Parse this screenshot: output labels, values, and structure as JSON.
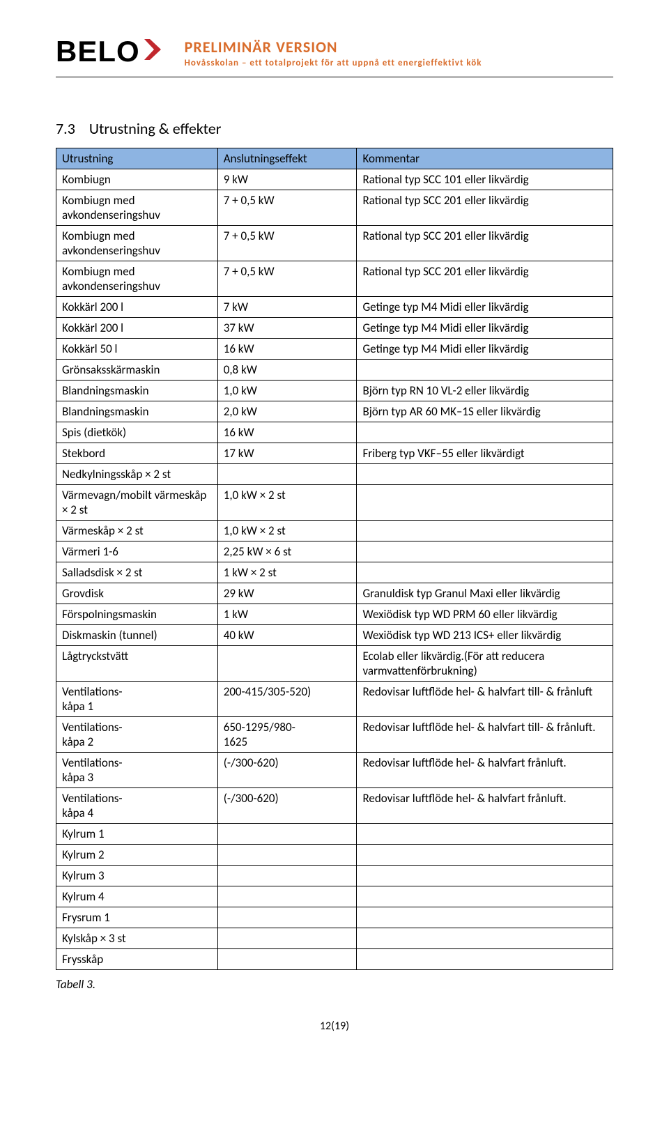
{
  "logo": {
    "text": "BELO"
  },
  "header": {
    "line1": "PRELIMINÄR VERSION",
    "line2": "Hovåsskolan – ett totalprojekt för att uppnå ett energieffektivt kök"
  },
  "section": {
    "number": "7.3",
    "title": "Utrustning & effekter"
  },
  "table": {
    "headers": [
      "Utrustning",
      "Anslutningseffekt",
      "Kommentar"
    ],
    "headerBg": "#8db4e2",
    "rows": [
      [
        "Kombiugn",
        "9 kW",
        "Rational typ SCC 101 eller likvärdig"
      ],
      [
        "Kombiugn med avkondenseringshuv",
        "7 + 0,5 kW",
        "Rational typ SCC 201 eller likvärdig"
      ],
      [
        "Kombiugn med avkondenseringshuv",
        "7 + 0,5 kW",
        "Rational typ SCC 201 eller likvärdig"
      ],
      [
        "Kombiugn med avkondenseringshuv",
        "7 + 0,5 kW",
        "Rational typ SCC 201 eller likvärdig"
      ],
      [
        "Kokkärl 200 l",
        "7 kW",
        "Getinge typ M4 Midi eller likvärdig"
      ],
      [
        "Kokkärl 200 l",
        "37 kW",
        "Getinge typ M4 Midi eller likvärdig"
      ],
      [
        "Kokkärl 50 l",
        "16 kW",
        "Getinge typ M4 Midi eller likvärdig"
      ],
      [
        "Grönsaksskärmaskin",
        "0,8 kW",
        ""
      ],
      [
        "Blandningsmaskin",
        "1,0 kW",
        "Björn typ RN 10 VL-2 eller likvärdig"
      ],
      [
        "Blandningsmaskin",
        "2,0 kW",
        "Björn typ AR 60 MK–1S eller likvärdig"
      ],
      [
        "Spis (dietkök)",
        "16 kW",
        ""
      ],
      [
        "Stekbord",
        "17 kW",
        "Friberg typ VKF–55 eller likvärdigt"
      ],
      [
        "Nedkylningsskåp × 2 st",
        "",
        ""
      ],
      [
        "Värmevagn/mobilt värmeskåp × 2 st",
        "1,0 kW × 2 st",
        ""
      ],
      [
        "Värmeskåp × 2 st",
        "1,0 kW × 2 st",
        ""
      ],
      [
        "Värmeri 1-6",
        "2,25 kW × 6 st",
        ""
      ],
      [
        "Salladsdisk × 2 st",
        "1 kW × 2 st",
        ""
      ],
      [
        "Grovdisk",
        "29 kW",
        "Granuldisk typ Granul Maxi eller likvärdig"
      ],
      [
        "Förspolningsmaskin",
        "1 kW",
        "Wexiödisk typ WD PRM 60 eller likvärdig"
      ],
      [
        "Diskmaskin (tunnel)",
        "40 kW",
        "Wexiödisk typ WD 213 ICS+ eller likvärdig"
      ],
      [
        "Lågtryckstvätt",
        "",
        "Ecolab eller likvärdig.(För att reducera varmvattenförbrukning)"
      ],
      [
        "Ventilations-\nkåpa 1",
        "200-415/305-520)",
        "Redovisar luftflöde hel- & halvfart till- & frånluft"
      ],
      [
        "Ventilations-\nkåpa 2",
        "650-1295/980-\n1625",
        "Redovisar luftflöde hel- & halvfart till- & frånluft."
      ],
      [
        "Ventilations-\nkåpa 3",
        "(-/300-620)",
        "Redovisar luftflöde hel- & halvfart frånluft."
      ],
      [
        "Ventilations-\nkåpa 4",
        "(-/300-620)",
        "Redovisar luftflöde hel- & halvfart frånluft."
      ],
      [
        "Kylrum 1",
        "",
        ""
      ],
      [
        "Kylrum 2",
        "",
        ""
      ],
      [
        "Kylrum 3",
        "",
        ""
      ],
      [
        "Kylrum 4",
        "",
        ""
      ],
      [
        "Frysrum 1",
        "",
        ""
      ],
      [
        "Kylskåp × 3 st",
        "",
        ""
      ],
      [
        "Frysskåp",
        "",
        ""
      ]
    ]
  },
  "caption": "Tabell 3.",
  "footer": "12(19)"
}
